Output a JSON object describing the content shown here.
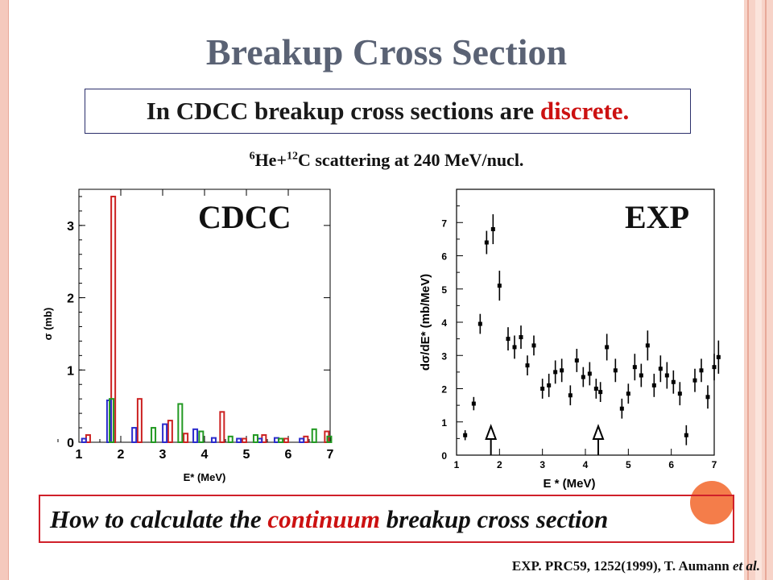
{
  "slide": {
    "title": "Breakup Cross Section",
    "boxed_part1": "In CDCC breakup cross sections are ",
    "boxed_highlight": "discrete.",
    "subtitle_sup1": "6",
    "subtitle_mid": "He+",
    "subtitle_sup2": "12",
    "subtitle_rest": "C scattering at 240 MeV/nucl.",
    "bottom_part1": "How to calculate the ",
    "bottom_highlight": "continuum",
    "bottom_part2": " breakup cross section",
    "reference_main": "EXP. PRC59, 1252(1999), T. Aumann ",
    "reference_italic": "et al.",
    "colors": {
      "accent_red": "#cc1111",
      "title_gray": "#5a6274",
      "frame": "#f5c9bd"
    }
  },
  "chart_data": [
    {
      "type": "bar",
      "label": "CDCC",
      "xlabel": "E* (MeV)",
      "ylabel": "σ (mb)",
      "xlim": [
        1,
        7
      ],
      "ylim": [
        0,
        3.5
      ],
      "xticks": [
        "1",
        "2",
        "3",
        "4",
        "5",
        "6",
        "7"
      ],
      "yticks": [
        "0",
        "1",
        "2",
        "3"
      ],
      "series": [
        {
          "color": "#cc2222",
          "points": [
            [
              1.82,
              3.4
            ],
            [
              1.22,
              0.1
            ],
            [
              2.45,
              0.6
            ],
            [
              3.18,
              0.3
            ],
            [
              3.55,
              0.12
            ],
            [
              4.42,
              0.42
            ],
            [
              4.95,
              0.05
            ],
            [
              5.42,
              0.1
            ],
            [
              5.95,
              0.05
            ],
            [
              6.42,
              0.08
            ],
            [
              6.92,
              0.15
            ]
          ]
        },
        {
          "color": "#2b2bcc",
          "points": [
            [
              1.72,
              0.58
            ],
            [
              1.12,
              0.05
            ],
            [
              2.32,
              0.2
            ],
            [
              3.05,
              0.25
            ],
            [
              3.78,
              0.18
            ],
            [
              4.22,
              0.06
            ],
            [
              4.82,
              0.05
            ],
            [
              5.32,
              0.05
            ],
            [
              5.72,
              0.06
            ],
            [
              6.32,
              0.05
            ]
          ]
        },
        {
          "color": "#229922",
          "points": [
            [
              1.78,
              0.6
            ],
            [
              2.78,
              0.2
            ],
            [
              3.42,
              0.53
            ],
            [
              3.92,
              0.15
            ],
            [
              4.62,
              0.08
            ],
            [
              5.22,
              0.1
            ],
            [
              5.82,
              0.05
            ],
            [
              6.62,
              0.18
            ],
            [
              6.98,
              0.08
            ]
          ]
        }
      ]
    },
    {
      "type": "scatter",
      "label": "EXP",
      "xlabel": "E * (MeV)",
      "ylabel": "dσ/dE* (mb/MeV)",
      "xlim": [
        1,
        7
      ],
      "ylim": [
        0,
        8
      ],
      "xticks": [
        "1",
        "2",
        "3",
        "4",
        "5",
        "6",
        "7"
      ],
      "yticks": [
        "0",
        "1",
        "2",
        "3",
        "4",
        "5",
        "6",
        "7"
      ],
      "arrows_x": [
        1.8,
        4.3
      ],
      "points": [
        [
          1.2,
          0.6,
          0.15
        ],
        [
          1.4,
          1.55,
          0.2
        ],
        [
          1.55,
          3.95,
          0.3
        ],
        [
          1.7,
          6.4,
          0.35
        ],
        [
          1.85,
          6.8,
          0.45
        ],
        [
          2.0,
          5.1,
          0.45
        ],
        [
          2.2,
          3.5,
          0.35
        ],
        [
          2.35,
          3.25,
          0.35
        ],
        [
          2.5,
          3.55,
          0.35
        ],
        [
          2.65,
          2.7,
          0.3
        ],
        [
          2.8,
          3.3,
          0.3
        ],
        [
          3.0,
          2.0,
          0.3
        ],
        [
          3.15,
          2.1,
          0.35
        ],
        [
          3.3,
          2.5,
          0.35
        ],
        [
          3.45,
          2.55,
          0.35
        ],
        [
          3.65,
          1.8,
          0.3
        ],
        [
          3.8,
          2.85,
          0.35
        ],
        [
          3.95,
          2.35,
          0.3
        ],
        [
          4.1,
          2.45,
          0.35
        ],
        [
          4.25,
          2.0,
          0.3
        ],
        [
          4.35,
          1.9,
          0.3
        ],
        [
          4.5,
          3.25,
          0.4
        ],
        [
          4.7,
          2.55,
          0.35
        ],
        [
          4.85,
          1.4,
          0.3
        ],
        [
          5.0,
          1.85,
          0.3
        ],
        [
          5.15,
          2.65,
          0.4
        ],
        [
          5.3,
          2.4,
          0.35
        ],
        [
          5.45,
          3.3,
          0.45
        ],
        [
          5.6,
          2.1,
          0.35
        ],
        [
          5.75,
          2.6,
          0.4
        ],
        [
          5.9,
          2.4,
          0.4
        ],
        [
          6.05,
          2.2,
          0.35
        ],
        [
          6.2,
          1.85,
          0.35
        ],
        [
          6.35,
          0.6,
          0.3
        ],
        [
          6.55,
          2.25,
          0.35
        ],
        [
          6.7,
          2.55,
          0.35
        ],
        [
          6.85,
          1.75,
          0.35
        ],
        [
          7.0,
          2.65,
          0.4
        ],
        [
          7.1,
          2.95,
          0.5
        ],
        [
          7.2,
          2.2,
          0.4
        ]
      ]
    }
  ]
}
